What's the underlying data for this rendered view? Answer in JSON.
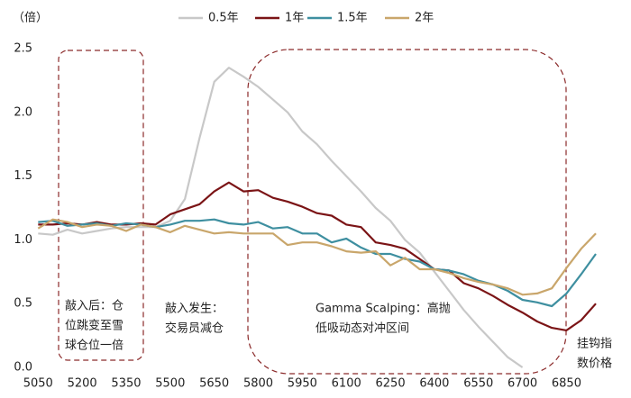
{
  "chart_data": {
    "type": "line",
    "y_unit": "（倍）",
    "x_label": [
      "挂钩指",
      "数价格"
    ],
    "x": [
      5050,
      5100,
      5150,
      5200,
      5250,
      5300,
      5350,
      5400,
      5450,
      5500,
      5550,
      5600,
      5650,
      5700,
      5750,
      5800,
      5850,
      5900,
      5950,
      6000,
      6050,
      6100,
      6150,
      6200,
      6250,
      6300,
      6350,
      6400,
      6450,
      6500,
      6550,
      6600,
      6650,
      6700,
      6750,
      6800,
      6850,
      6900,
      6950
    ],
    "xlim": [
      5000,
      6950
    ],
    "xticks": [
      5050,
      5200,
      5350,
      5500,
      5650,
      5800,
      5950,
      6100,
      6250,
      6400,
      6550,
      6700,
      6850
    ],
    "ylim": [
      0,
      2.5
    ],
    "yticks": [
      {
        "value": 0,
        "label": "0.0"
      },
      0.5,
      {
        "value": 1,
        "label": "1.0"
      },
      1.5,
      {
        "value": 2,
        "label": "2.0"
      },
      2.5
    ],
    "series": [
      {
        "name": "0.5年",
        "color": "#c8c8c8",
        "values": [
          1.05,
          1.04,
          1.08,
          1.05,
          1.07,
          1.09,
          1.1,
          1.1,
          1.1,
          1.15,
          1.32,
          1.8,
          2.24,
          2.35,
          2.28,
          2.2,
          2.1,
          2.0,
          1.85,
          1.75,
          1.62,
          1.5,
          1.38,
          1.25,
          1.15,
          1.0,
          0.9,
          0.75,
          0.6,
          0.45,
          0.32,
          0.2,
          0.08,
          0,
          null,
          null,
          null,
          null,
          null
        ]
      },
      {
        "name": "1年",
        "color": "#7b1416",
        "values": [
          1.12,
          1.12,
          1.13,
          1.12,
          1.14,
          1.12,
          1.12,
          1.13,
          1.12,
          1.2,
          1.24,
          1.28,
          1.38,
          1.45,
          1.38,
          1.39,
          1.33,
          1.3,
          1.26,
          1.21,
          1.19,
          1.12,
          1.1,
          0.98,
          0.96,
          0.93,
          0.85,
          0.77,
          0.76,
          0.66,
          0.62,
          0.56,
          0.49,
          0.43,
          0.36,
          0.31,
          0.29,
          0.37,
          0.5
        ]
      },
      {
        "name": "1.5年",
        "color": "#3e8fa0",
        "values": [
          1.14,
          1.15,
          1.11,
          1.12,
          1.13,
          1.11,
          1.13,
          1.12,
          1.1,
          1.12,
          1.15,
          1.15,
          1.16,
          1.13,
          1.12,
          1.14,
          1.09,
          1.1,
          1.05,
          1.05,
          0.98,
          1.01,
          0.94,
          0.89,
          0.89,
          0.85,
          0.83,
          0.77,
          0.76,
          0.73,
          0.68,
          0.65,
          0.6,
          0.53,
          0.51,
          0.48,
          0.58,
          0.73,
          0.89
        ]
      },
      {
        "name": "2年",
        "color": "#c9a66b",
        "values": [
          1.09,
          1.16,
          1.14,
          1.1,
          1.12,
          1.11,
          1.07,
          1.12,
          1.1,
          1.06,
          1.11,
          1.08,
          1.05,
          1.06,
          1.05,
          1.05,
          1.05,
          0.96,
          0.98,
          0.98,
          0.95,
          0.91,
          0.9,
          0.91,
          0.8,
          0.86,
          0.77,
          0.77,
          0.74,
          0.7,
          0.67,
          0.65,
          0.62,
          0.57,
          0.58,
          0.62,
          0.78,
          0.93,
          1.05
        ]
      }
    ],
    "annotations": [
      {
        "lines": [
          "敲入后：仓",
          "位跳变至雪",
          "球仓位一倍"
        ]
      },
      {
        "lines": [
          "敲入发生：",
          "交易员减仓"
        ]
      },
      {
        "lines": [
          "Gamma Scalping：高抛",
          "低吸动态对冲区间"
        ]
      }
    ]
  }
}
